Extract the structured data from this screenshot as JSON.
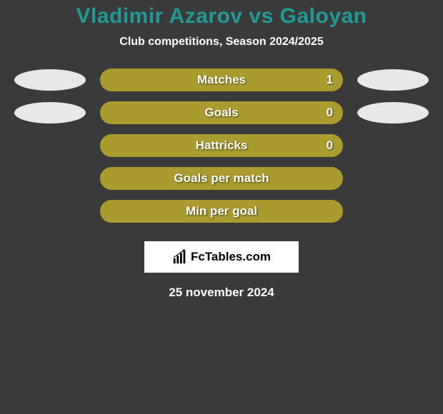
{
  "title": "Vladimir Azarov vs Galoyan",
  "title_color": "#1f9a97",
  "title_fontsize": 30,
  "subtitle": "Club competitions, Season 2024/2025",
  "subtitle_fontsize": 16,
  "background_color": "#3a3a3a",
  "bar_color": "#a99b2e",
  "bar_label_fontsize": 17,
  "bar_value_fontsize": 17,
  "ellipse_color": "#e8e8e8",
  "stats": [
    {
      "label": "Matches",
      "value": "1",
      "show_value": true,
      "left_ellipse": true,
      "right_ellipse": true
    },
    {
      "label": "Goals",
      "value": "0",
      "show_value": true,
      "left_ellipse": true,
      "right_ellipse": true
    },
    {
      "label": "Hattricks",
      "value": "0",
      "show_value": true,
      "left_ellipse": false,
      "right_ellipse": false
    },
    {
      "label": "Goals per match",
      "value": "",
      "show_value": false,
      "left_ellipse": false,
      "right_ellipse": false
    },
    {
      "label": "Min per goal",
      "value": "",
      "show_value": false,
      "left_ellipse": false,
      "right_ellipse": false
    }
  ],
  "logo_text": "FcTables.com",
  "date": "25 november 2024",
  "date_fontsize": 17
}
